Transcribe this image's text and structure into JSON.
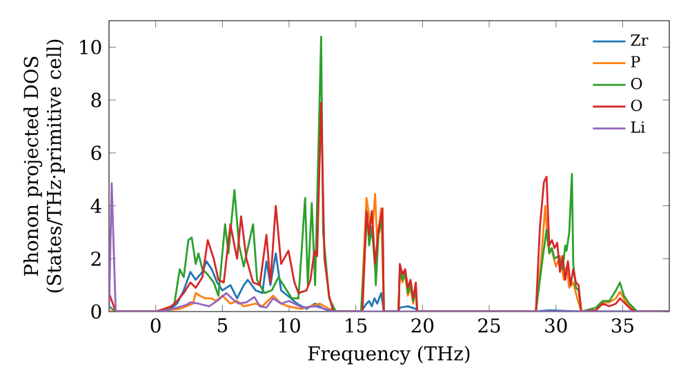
{
  "chart_data": {
    "type": "line",
    "xlabel": "Frequency (THz)",
    "ylabel": "Phonon projected DOS (States/THz·primitive cell)",
    "xlim": [
      -3.5,
      38.5
    ],
    "ylim": [
      0,
      11
    ],
    "xticks": [
      0,
      5,
      10,
      15,
      20,
      25,
      30,
      35
    ],
    "yticks": [
      0,
      2,
      4,
      6,
      8,
      10
    ],
    "legend": "top right",
    "grid": false,
    "marker": "none",
    "line_style": "solid",
    "series": [
      {
        "name": "Zr",
        "color": "#1f77b4",
        "x": [
          -3.5,
          0.0,
          1.0,
          1.6,
          2.1,
          2.6,
          3.0,
          3.5,
          3.8,
          4.2,
          4.6,
          5.0,
          5.6,
          6.1,
          6.6,
          6.9,
          7.5,
          8.0,
          8.3,
          8.6,
          9.0,
          9.4,
          9.9,
          10.6,
          11.3,
          11.95,
          12.6,
          13.2,
          15.4,
          15.8,
          16.0,
          16.2,
          16.4,
          16.6,
          16.9,
          17.1,
          18.2,
          18.3,
          18.9,
          19.5,
          19.6,
          28.5,
          29.5,
          31.9,
          38.5
        ],
        "values": [
          0,
          0,
          0.05,
          0.3,
          0.8,
          1.5,
          1.2,
          1.5,
          1.9,
          1.6,
          1.1,
          0.8,
          1.0,
          0.5,
          1.0,
          1.2,
          0.8,
          0.7,
          1.9,
          1.0,
          2.2,
          0.8,
          0.6,
          0.3,
          0.1,
          0.3,
          0.1,
          0,
          0,
          0.3,
          0.4,
          0.2,
          0.5,
          0.3,
          0.7,
          0,
          0,
          0.15,
          0.2,
          0.1,
          0,
          0,
          0.05,
          0,
          0
        ]
      },
      {
        "name": "P",
        "color": "#ff7f0e",
        "x": [
          -3.5,
          0.0,
          1.8,
          2.3,
          2.8,
          3.0,
          3.3,
          3.7,
          4.2,
          4.5,
          5.0,
          5.6,
          6.1,
          6.6,
          7.5,
          8.0,
          8.8,
          9.4,
          9.9,
          10.9,
          12.3,
          13.0,
          13.5,
          15.4,
          15.8,
          16.0,
          16.2,
          16.45,
          16.6,
          16.9,
          17.1,
          18.2,
          18.3,
          18.5,
          18.7,
          18.9,
          19.1,
          19.3,
          19.5,
          19.6,
          28.5,
          28.9,
          29.2,
          29.4,
          29.7,
          30.0,
          30.3,
          30.6,
          30.8,
          31.0,
          31.3,
          31.6,
          31.9,
          33.0,
          33.5,
          34.0,
          34.5,
          34.8,
          35.2,
          36.0,
          38.5
        ],
        "values": [
          0,
          0,
          0.1,
          0.2,
          0.3,
          0.7,
          0.6,
          0.5,
          0.5,
          0.4,
          0.6,
          0.3,
          0.4,
          0.2,
          0.3,
          0.2,
          0.6,
          0.3,
          0.2,
          0.1,
          0.3,
          0.1,
          0,
          0,
          4.3,
          3.6,
          2.8,
          4.45,
          2.6,
          3.9,
          0,
          0,
          1.5,
          1.1,
          1.4,
          0.6,
          0.9,
          0.3,
          0.8,
          0,
          0,
          2.0,
          4.0,
          2.5,
          2.3,
          1.7,
          2.1,
          1.2,
          1.7,
          0.9,
          1.1,
          0.5,
          0,
          0.05,
          0.35,
          0.35,
          0.5,
          0.75,
          0.4,
          0,
          0
        ]
      },
      {
        "name": "O",
        "color": "#2ca02c",
        "x": [
          -3.5,
          -3.0,
          0.0,
          0.9,
          1.4,
          1.8,
          2.1,
          2.45,
          2.7,
          3.0,
          3.2,
          3.5,
          3.9,
          4.35,
          4.7,
          5.2,
          5.45,
          5.9,
          6.25,
          6.6,
          7.3,
          7.6,
          8.15,
          8.7,
          9.2,
          9.7,
          10.2,
          10.7,
          11.2,
          11.4,
          11.7,
          11.95,
          12.4,
          12.55,
          13.0,
          13.5,
          15.4,
          15.85,
          16.0,
          16.2,
          16.45,
          16.5,
          16.7,
          17.0,
          17.1,
          18.2,
          18.3,
          18.5,
          18.7,
          18.9,
          19.1,
          19.3,
          19.5,
          19.6,
          28.5,
          28.8,
          29.0,
          29.3,
          29.5,
          29.7,
          29.9,
          30.2,
          30.5,
          30.7,
          30.8,
          31.0,
          31.2,
          31.3,
          31.5,
          31.7,
          31.9,
          33.0,
          33.5,
          34.0,
          34.5,
          34.8,
          35.1,
          35.5,
          36.1,
          38.5
        ],
        "values": [
          0.2,
          0,
          0,
          0.1,
          0.3,
          1.6,
          1.3,
          2.7,
          2.8,
          1.8,
          2.2,
          1.6,
          1.4,
          1.1,
          0.6,
          3.3,
          2.2,
          4.6,
          2.5,
          1.7,
          3.3,
          1.2,
          0.7,
          0.8,
          1.3,
          0.9,
          0.5,
          0.5,
          4.3,
          1.0,
          4.1,
          1.0,
          10.4,
          3.0,
          0.5,
          0,
          0,
          3.7,
          2.5,
          3.2,
          1.6,
          1.0,
          2.9,
          3.5,
          0,
          0,
          1.6,
          1.2,
          1.5,
          0.7,
          1.0,
          0.4,
          0.9,
          0,
          0,
          1.2,
          2.0,
          3.1,
          2.2,
          2.4,
          2.0,
          2.1,
          1.6,
          2.5,
          2.3,
          3.0,
          5.2,
          1.8,
          0.9,
          0.8,
          0,
          0.15,
          0.4,
          0.4,
          0.8,
          1.1,
          0.6,
          0.3,
          0,
          0
        ]
      },
      {
        "name": "O",
        "color": "#d62728",
        "x": [
          -3.5,
          -3.0,
          0.0,
          1.2,
          1.6,
          2.1,
          2.6,
          3.0,
          3.5,
          3.9,
          4.35,
          4.7,
          5.1,
          5.6,
          5.9,
          6.1,
          6.4,
          6.8,
          7.3,
          7.8,
          8.3,
          8.6,
          9.0,
          9.4,
          9.95,
          10.4,
          10.7,
          11.3,
          11.6,
          11.9,
          12.1,
          12.4,
          12.65,
          13.0,
          13.3,
          15.5,
          15.8,
          16.0,
          16.2,
          16.45,
          16.7,
          17.0,
          17.1,
          18.2,
          18.3,
          18.5,
          18.7,
          18.9,
          19.1,
          19.3,
          19.5,
          19.6,
          28.5,
          28.8,
          29.1,
          29.3,
          29.5,
          29.7,
          29.9,
          30.1,
          30.3,
          30.5,
          30.7,
          30.9,
          31.1,
          31.3,
          31.5,
          31.7,
          31.9,
          33.0,
          33.5,
          34.0,
          34.5,
          34.8,
          35.2,
          35.6,
          36.0,
          38.5
        ],
        "values": [
          0.7,
          0,
          0,
          0.2,
          0.4,
          0.7,
          1.1,
          0.9,
          1.3,
          2.7,
          2.0,
          1.2,
          1.1,
          3.3,
          2.5,
          2.0,
          3.6,
          2.0,
          1.1,
          1.0,
          2.9,
          1.1,
          4.0,
          1.8,
          2.3,
          1.1,
          0.7,
          0.8,
          1.2,
          2.3,
          2.1,
          7.9,
          2.0,
          0.6,
          0,
          0,
          3.8,
          2.9,
          3.8,
          1.8,
          3.1,
          3.9,
          0,
          0,
          1.8,
          1.4,
          1.6,
          0.9,
          1.2,
          0.5,
          1.1,
          0,
          0,
          3.2,
          4.9,
          5.1,
          2.5,
          2.7,
          2.4,
          2.6,
          1.5,
          2.1,
          1.2,
          1.9,
          1.0,
          1.6,
          1.1,
          1.0,
          0,
          0.05,
          0.3,
          0.2,
          0.3,
          0.5,
          0.3,
          0.1,
          0,
          0
        ]
      },
      {
        "name": "Li",
        "color": "#9467bd",
        "x": [
          -3.5,
          -3.3,
          -3.0,
          0.0,
          0.9,
          1.6,
          2.3,
          2.6,
          3.2,
          4.0,
          4.6,
          5.3,
          5.7,
          6.2,
          6.8,
          7.4,
          7.8,
          8.3,
          8.8,
          9.4,
          10.0,
          11.0,
          12.0,
          13.0,
          13.5,
          38.5
        ],
        "values": [
          0,
          4.85,
          0,
          0,
          0.05,
          0.15,
          0.25,
          0.35,
          0.3,
          0.2,
          0.4,
          0.7,
          0.5,
          0.3,
          0.35,
          0.55,
          0.2,
          0.15,
          0.5,
          0.3,
          0.4,
          0.15,
          0.2,
          0.05,
          0,
          0
        ]
      }
    ]
  }
}
